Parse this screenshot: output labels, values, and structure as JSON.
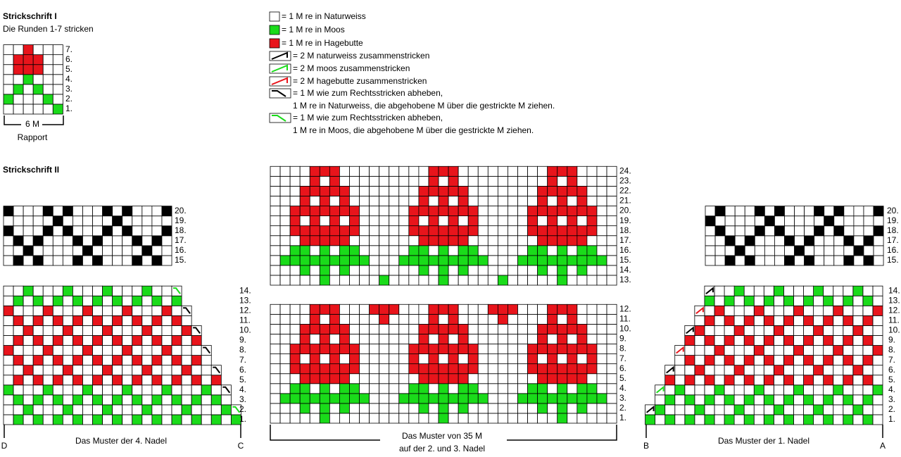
{
  "chart1": {
    "title": "Strickschrift I",
    "subtitle": "Die Runden 1-7 stricken",
    "rows": [
      "1.",
      "2.",
      "3.",
      "4.",
      "5.",
      "6.",
      "7."
    ],
    "width_label": "6 M",
    "rapport": "Rapport"
  },
  "legend": [
    [
      "= 1 M re in Naturweiss"
    ],
    [
      "= 1 M re in Moos"
    ],
    [
      "= 1 M re in Hagebutte"
    ],
    [
      "= 2 M naturweiss zusammenstricken"
    ],
    [
      "= 2 M moos zusammenstricken"
    ],
    [
      "= 2 M hagebutte zusammenstricken"
    ],
    [
      "= 1 M wie zum Rechtsstricken abheben,",
      "1 M re in Naturweiss, die abgehobene M über die gestrickte M ziehen."
    ],
    [
      "= 1 M wie zum Rechtsstricken abheben,",
      "1 M re in Moos, die abgehobene M über die gestrickte M ziehen."
    ]
  ],
  "chart2": {
    "title": "Strickschrift II",
    "left": {
      "top_rows": [
        "15.",
        "16.",
        "17.",
        "18.",
        "19.",
        "20."
      ],
      "bottom_rows": [
        "1.",
        "2.",
        "3.",
        "4.",
        "5.",
        "6.",
        "7.",
        "8.",
        "9.",
        "10.",
        "11.",
        "12.",
        "13.",
        "14."
      ],
      "caption": "Das Muster der 4. Nadel",
      "start": "D",
      "end": "C"
    },
    "middle": {
      "top_rows": [
        "13.",
        "14.",
        "15.",
        "16.",
        "17.",
        "18.",
        "19.",
        "20.",
        "21.",
        "22.",
        "23.",
        "24."
      ],
      "bottom_rows": [
        "1.",
        "2.",
        "3.",
        "4.",
        "5.",
        "6.",
        "7.",
        "8.",
        "9.",
        "10.",
        "11.",
        "12."
      ],
      "caption": [
        "Das Muster von 35 M",
        "auf der 2. und 3. Nadel"
      ]
    },
    "right": {
      "top_rows": [
        "15.",
        "16.",
        "17.",
        "18.",
        "19.",
        "20."
      ],
      "bottom_rows": [
        "1.",
        "2.",
        "3.",
        "4.",
        "5.",
        "6.",
        "7.",
        "8.",
        "9.",
        "10.",
        "11.",
        "12.",
        "13.",
        "14."
      ],
      "caption": "Das Muster der 1. Nadel",
      "start": "B",
      "end": "A"
    }
  }
}
